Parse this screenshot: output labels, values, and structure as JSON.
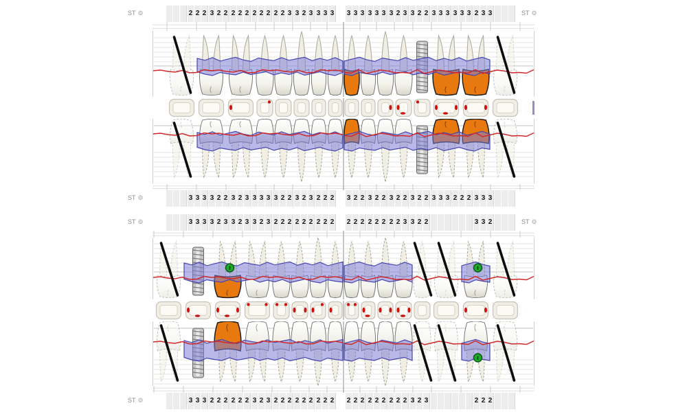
{
  "labels": {
    "st": "ST",
    "gear_icon": "⚙"
  },
  "colors": {
    "gingiva_band": "#7d7dd7",
    "gingiva_stroke": "#4646ae",
    "margin_line": "#d02828",
    "crown_restoration": "#e8790f",
    "bleeding_mark": "#cc1111",
    "implant_body": "#c6c6c6",
    "marker_green": "#21a82e",
    "missing_slash": "#0d0d0d"
  },
  "upper": {
    "st_top": {
      "left": [
        "",
        "",
        "",
        "2",
        "2",
        "2",
        "3",
        "2",
        "2",
        "2",
        "2",
        "2",
        "2",
        "2",
        "2",
        "2",
        "2",
        "3",
        "3",
        "2",
        "3",
        "3",
        "3",
        "3"
      ],
      "right": [
        "3",
        "3",
        "3",
        "3",
        "3",
        "3",
        "3",
        "2",
        "3",
        "3",
        "2",
        "2",
        "3",
        "3",
        "3",
        "3",
        "3",
        "3",
        "2",
        "3",
        "3",
        "",
        "",
        ""
      ]
    },
    "st_bottom": {
      "left": [
        "",
        "",
        "",
        "3",
        "3",
        "3",
        "3",
        "2",
        "2",
        "3",
        "2",
        "3",
        "3",
        "3",
        "3",
        "3",
        "2",
        "2",
        "3",
        "2",
        "3",
        "2",
        "2",
        "2"
      ],
      "right": [
        "3",
        "2",
        "2",
        "3",
        "2",
        "2",
        "3",
        "2",
        "2",
        "3",
        "2",
        "2",
        "3",
        "3",
        "3",
        "2",
        "2",
        "2",
        "3",
        "3",
        "3",
        "",
        "",
        ""
      ]
    },
    "quadrant_left": {
      "teeth": [
        {
          "type": "molar",
          "status": "missing"
        },
        {
          "type": "molar",
          "status": "normal"
        },
        {
          "type": "molar",
          "status": "normal"
        },
        {
          "type": "premolar",
          "status": "normal"
        },
        {
          "type": "premolar",
          "status": "normal"
        },
        {
          "type": "canine",
          "status": "normal"
        },
        {
          "type": "incisor",
          "status": "normal"
        },
        {
          "type": "incisor",
          "status": "normal"
        }
      ],
      "occlusal_marks": [
        [],
        [],
        [
          "l"
        ],
        [
          "tr"
        ],
        [],
        [],
        [],
        []
      ]
    },
    "quadrant_right": {
      "teeth": [
        {
          "type": "incisor",
          "status": "crowned"
        },
        {
          "type": "incisor",
          "status": "normal"
        },
        {
          "type": "canine",
          "status": "normal"
        },
        {
          "type": "premolar",
          "status": "normal"
        },
        {
          "type": "premolar",
          "status": "implant"
        },
        {
          "type": "molar",
          "status": "crowned"
        },
        {
          "type": "molar",
          "status": "crowned"
        },
        {
          "type": "molar",
          "status": "missing"
        }
      ],
      "occlusal_marks": [
        [],
        [],
        [
          "r"
        ],
        [
          "l",
          "b"
        ],
        [
          "tl"
        ],
        [
          "l",
          "b",
          "r"
        ],
        [
          "l",
          "r"
        ],
        []
      ]
    }
  },
  "lower": {
    "st_top": {
      "left": [
        "",
        "",
        "",
        "3",
        "3",
        "3",
        "3",
        "2",
        "3",
        "3",
        "2",
        "3",
        "3",
        "2",
        "3",
        "2",
        "2",
        "2",
        "2",
        "2",
        "2",
        "2",
        "2",
        "2"
      ],
      "right": [
        "2",
        "2",
        "2",
        "2",
        "2",
        "2",
        "2",
        "2",
        "3",
        "3",
        "2",
        "2",
        "",
        "",
        "",
        "",
        "",
        "",
        "3",
        "3",
        "2",
        "",
        "",
        ""
      ]
    },
    "st_bottom": {
      "left": [
        "",
        "",
        "",
        "3",
        "3",
        "3",
        "2",
        "2",
        "2",
        "2",
        "2",
        "2",
        "3",
        "2",
        "3",
        "2",
        "2",
        "2",
        "2",
        "2",
        "2",
        "2",
        "2",
        "2"
      ],
      "right": [
        "2",
        "2",
        "2",
        "2",
        "2",
        "2",
        "2",
        "2",
        "2",
        "3",
        "2",
        "3",
        "",
        "",
        "",
        "",
        "",
        "",
        "2",
        "2",
        "2",
        "",
        "",
        ""
      ]
    },
    "quadrant_left": {
      "teeth": [
        {
          "type": "molar",
          "status": "missing"
        },
        {
          "type": "molar",
          "status": "implant"
        },
        {
          "type": "molar",
          "status": "crowned",
          "marker_rows": [
            "a"
          ]
        },
        {
          "type": "molar",
          "status": "normal"
        },
        {
          "type": "premolar",
          "status": "normal"
        },
        {
          "type": "premolar",
          "status": "normal"
        },
        {
          "type": "canine",
          "status": "normal"
        },
        {
          "type": "incisor",
          "status": "normal"
        }
      ],
      "occlusal_marks": [
        [],
        [
          "l",
          "b"
        ],
        [
          "l",
          "b",
          "r"
        ],
        [
          "tl",
          "tr"
        ],
        [
          "tl",
          "tr"
        ],
        [
          "l",
          "r"
        ],
        [
          "l",
          "tr"
        ],
        [
          "l"
        ]
      ]
    },
    "quadrant_right": {
      "teeth": [
        {
          "type": "incisor",
          "status": "normal"
        },
        {
          "type": "incisor",
          "status": "normal"
        },
        {
          "type": "canine",
          "status": "normal"
        },
        {
          "type": "premolar",
          "status": "normal"
        },
        {
          "type": "premolar",
          "status": "missing"
        },
        {
          "type": "molar",
          "status": "missing"
        },
        {
          "type": "molar",
          "status": "normal",
          "marker_rows": [
            "a",
            "b"
          ]
        },
        {
          "type": "molar",
          "status": "missing"
        }
      ],
      "occlusal_marks": [
        [
          "tl",
          "tr"
        ],
        [
          "l",
          "b"
        ],
        [
          "l",
          "r"
        ],
        [
          "l",
          "b",
          "r"
        ],
        [],
        [],
        [
          "l",
          "r"
        ],
        []
      ]
    }
  }
}
